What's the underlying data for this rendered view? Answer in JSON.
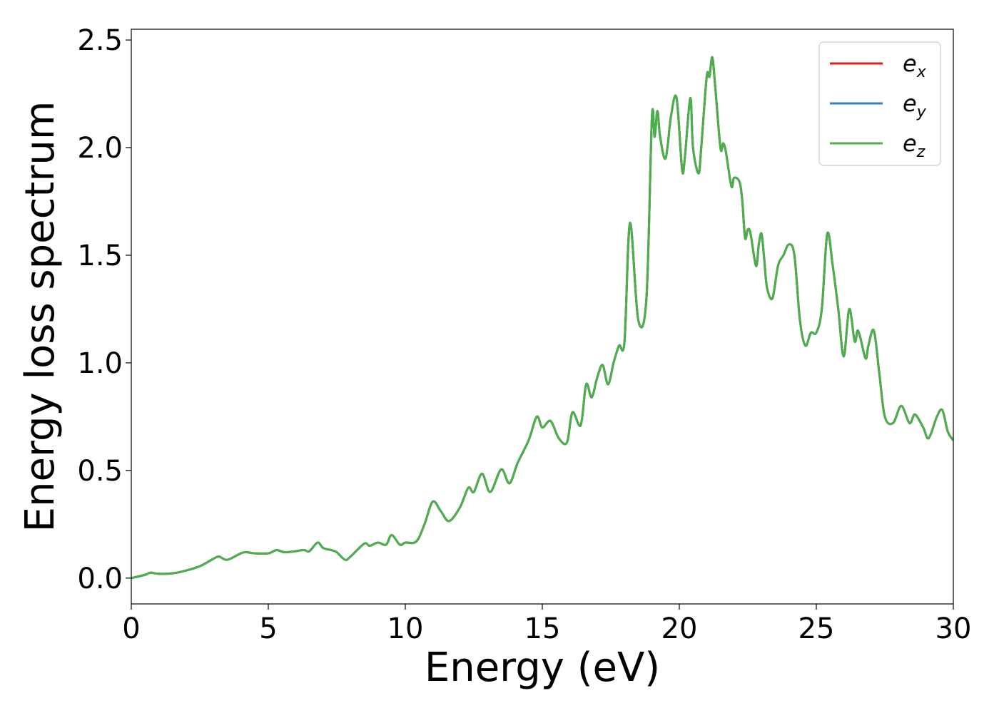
{
  "chart_data": {
    "type": "line",
    "title": "",
    "xlabel": "Energy (eV)",
    "ylabel": "Energy loss spectrum",
    "xlim": [
      0,
      30
    ],
    "ylim": [
      -0.12,
      2.55
    ],
    "xticks": [
      0,
      5,
      10,
      15,
      20,
      25,
      30
    ],
    "xtick_labels": [
      "0",
      "5",
      "10",
      "15",
      "20",
      "25",
      "30"
    ],
    "yticks": [
      0.0,
      0.5,
      1.0,
      1.5,
      2.0,
      2.5
    ],
    "ytick_labels": [
      "0.0",
      "0.5",
      "1.0",
      "1.5",
      "2.0",
      "2.5"
    ],
    "grid": false,
    "legend_position": "top-right",
    "x": [
      0,
      0.5,
      0.7,
      1.0,
      1.5,
      2.0,
      2.5,
      3.0,
      3.2,
      3.5,
      4.0,
      4.2,
      4.5,
      5.0,
      5.3,
      5.6,
      6.0,
      6.3,
      6.5,
      6.8,
      7.0,
      7.3,
      7.5,
      7.8,
      8.0,
      8.5,
      8.7,
      9.0,
      9.3,
      9.5,
      9.8,
      10.0,
      10.4,
      10.7,
      11.0,
      11.3,
      11.6,
      12.0,
      12.3,
      12.5,
      12.8,
      13.1,
      13.5,
      13.8,
      14.1,
      14.5,
      14.8,
      15.0,
      15.3,
      15.6,
      15.9,
      16.1,
      16.4,
      16.6,
      16.8,
      17.0,
      17.2,
      17.4,
      17.6,
      17.8,
      18.0,
      18.2,
      18.5,
      18.8,
      19.0,
      19.1,
      19.2,
      19.3,
      19.5,
      19.7,
      19.9,
      20.1,
      20.2,
      20.4,
      20.5,
      20.7,
      20.8,
      21.0,
      21.1,
      21.2,
      21.3,
      21.5,
      21.6,
      21.7,
      21.9,
      22.0,
      22.2,
      22.3,
      22.4,
      22.5,
      22.6,
      22.8,
      22.9,
      23.0,
      23.1,
      23.2,
      23.4,
      23.6,
      23.8,
      24.0,
      24.2,
      24.4,
      24.6,
      24.8,
      25.0,
      25.2,
      25.4,
      25.6,
      25.8,
      26.0,
      26.2,
      26.4,
      26.5,
      26.6,
      26.8,
      26.9,
      27.1,
      27.3,
      27.5,
      27.8,
      28.1,
      28.4,
      28.6,
      28.9,
      29.1,
      29.4,
      29.6,
      29.8,
      30.0
    ],
    "series": [
      {
        "name": "e_x",
        "label_main": "e",
        "label_sub": "x",
        "color": "#e41a1c",
        "values": [
          0.0,
          0.015,
          0.025,
          0.02,
          0.022,
          0.035,
          0.055,
          0.09,
          0.1,
          0.085,
          0.115,
          0.12,
          0.115,
          0.115,
          0.13,
          0.12,
          0.125,
          0.13,
          0.125,
          0.165,
          0.14,
          0.13,
          0.12,
          0.085,
          0.1,
          0.16,
          0.15,
          0.165,
          0.155,
          0.2,
          0.155,
          0.165,
          0.17,
          0.25,
          0.355,
          0.31,
          0.265,
          0.33,
          0.42,
          0.4,
          0.485,
          0.4,
          0.505,
          0.44,
          0.535,
          0.64,
          0.75,
          0.7,
          0.73,
          0.65,
          0.63,
          0.77,
          0.71,
          0.9,
          0.84,
          0.93,
          0.99,
          0.9,
          1.0,
          1.08,
          1.1,
          1.65,
          1.2,
          1.3,
          2.14,
          2.05,
          2.17,
          2.05,
          1.95,
          2.15,
          2.23,
          1.9,
          1.95,
          2.23,
          2.0,
          1.88,
          2.0,
          2.33,
          2.33,
          2.42,
          2.3,
          2.0,
          2.02,
          1.98,
          1.82,
          1.86,
          1.84,
          1.75,
          1.58,
          1.62,
          1.6,
          1.45,
          1.55,
          1.6,
          1.48,
          1.35,
          1.3,
          1.45,
          1.5,
          1.55,
          1.5,
          1.2,
          1.08,
          1.14,
          1.14,
          1.25,
          1.6,
          1.45,
          1.25,
          1.03,
          1.25,
          1.1,
          1.15,
          1.12,
          1.02,
          1.08,
          1.15,
          0.95,
          0.75,
          0.72,
          0.8,
          0.72,
          0.76,
          0.7,
          0.65,
          0.75,
          0.78,
          0.68,
          0.64
        ]
      },
      {
        "name": "e_y",
        "label_main": "e",
        "label_sub": "y",
        "color": "#377eb8",
        "values": [
          0.0,
          0.015,
          0.025,
          0.02,
          0.022,
          0.035,
          0.055,
          0.09,
          0.1,
          0.085,
          0.115,
          0.12,
          0.115,
          0.115,
          0.13,
          0.12,
          0.125,
          0.13,
          0.125,
          0.165,
          0.14,
          0.13,
          0.12,
          0.085,
          0.1,
          0.16,
          0.15,
          0.165,
          0.155,
          0.2,
          0.155,
          0.165,
          0.17,
          0.25,
          0.355,
          0.31,
          0.265,
          0.33,
          0.42,
          0.4,
          0.485,
          0.4,
          0.505,
          0.44,
          0.535,
          0.64,
          0.75,
          0.7,
          0.73,
          0.65,
          0.63,
          0.77,
          0.71,
          0.9,
          0.84,
          0.93,
          0.99,
          0.9,
          1.0,
          1.08,
          1.1,
          1.65,
          1.2,
          1.3,
          2.14,
          2.05,
          2.17,
          2.05,
          1.95,
          2.15,
          2.23,
          1.9,
          1.95,
          2.23,
          2.0,
          1.88,
          2.0,
          2.33,
          2.33,
          2.42,
          2.3,
          2.0,
          2.02,
          1.98,
          1.82,
          1.86,
          1.84,
          1.75,
          1.58,
          1.62,
          1.6,
          1.45,
          1.55,
          1.6,
          1.48,
          1.35,
          1.3,
          1.45,
          1.5,
          1.55,
          1.5,
          1.2,
          1.08,
          1.14,
          1.14,
          1.25,
          1.6,
          1.45,
          1.25,
          1.03,
          1.25,
          1.1,
          1.15,
          1.12,
          1.02,
          1.08,
          1.15,
          0.95,
          0.75,
          0.72,
          0.8,
          0.72,
          0.76,
          0.7,
          0.65,
          0.75,
          0.78,
          0.68,
          0.64
        ]
      },
      {
        "name": "e_z",
        "label_main": "e",
        "label_sub": "z",
        "color": "#4daf4a",
        "values": [
          0.0,
          0.015,
          0.025,
          0.02,
          0.022,
          0.035,
          0.055,
          0.09,
          0.1,
          0.085,
          0.115,
          0.12,
          0.115,
          0.115,
          0.13,
          0.12,
          0.125,
          0.13,
          0.125,
          0.165,
          0.14,
          0.13,
          0.12,
          0.085,
          0.1,
          0.16,
          0.15,
          0.165,
          0.155,
          0.2,
          0.155,
          0.165,
          0.17,
          0.25,
          0.355,
          0.31,
          0.265,
          0.33,
          0.42,
          0.4,
          0.485,
          0.4,
          0.505,
          0.44,
          0.535,
          0.64,
          0.75,
          0.7,
          0.73,
          0.65,
          0.63,
          0.77,
          0.71,
          0.9,
          0.84,
          0.93,
          0.99,
          0.9,
          1.0,
          1.08,
          1.1,
          1.65,
          1.2,
          1.3,
          2.14,
          2.05,
          2.17,
          2.05,
          1.95,
          2.15,
          2.23,
          1.9,
          1.95,
          2.23,
          2.0,
          1.88,
          2.0,
          2.33,
          2.33,
          2.42,
          2.3,
          2.0,
          2.02,
          1.98,
          1.82,
          1.86,
          1.84,
          1.75,
          1.58,
          1.62,
          1.6,
          1.45,
          1.55,
          1.6,
          1.48,
          1.35,
          1.3,
          1.45,
          1.5,
          1.55,
          1.5,
          1.2,
          1.08,
          1.14,
          1.14,
          1.25,
          1.6,
          1.45,
          1.25,
          1.03,
          1.25,
          1.1,
          1.15,
          1.12,
          1.02,
          1.08,
          1.15,
          0.95,
          0.75,
          0.72,
          0.8,
          0.72,
          0.76,
          0.7,
          0.65,
          0.75,
          0.78,
          0.68,
          0.64
        ]
      }
    ]
  }
}
